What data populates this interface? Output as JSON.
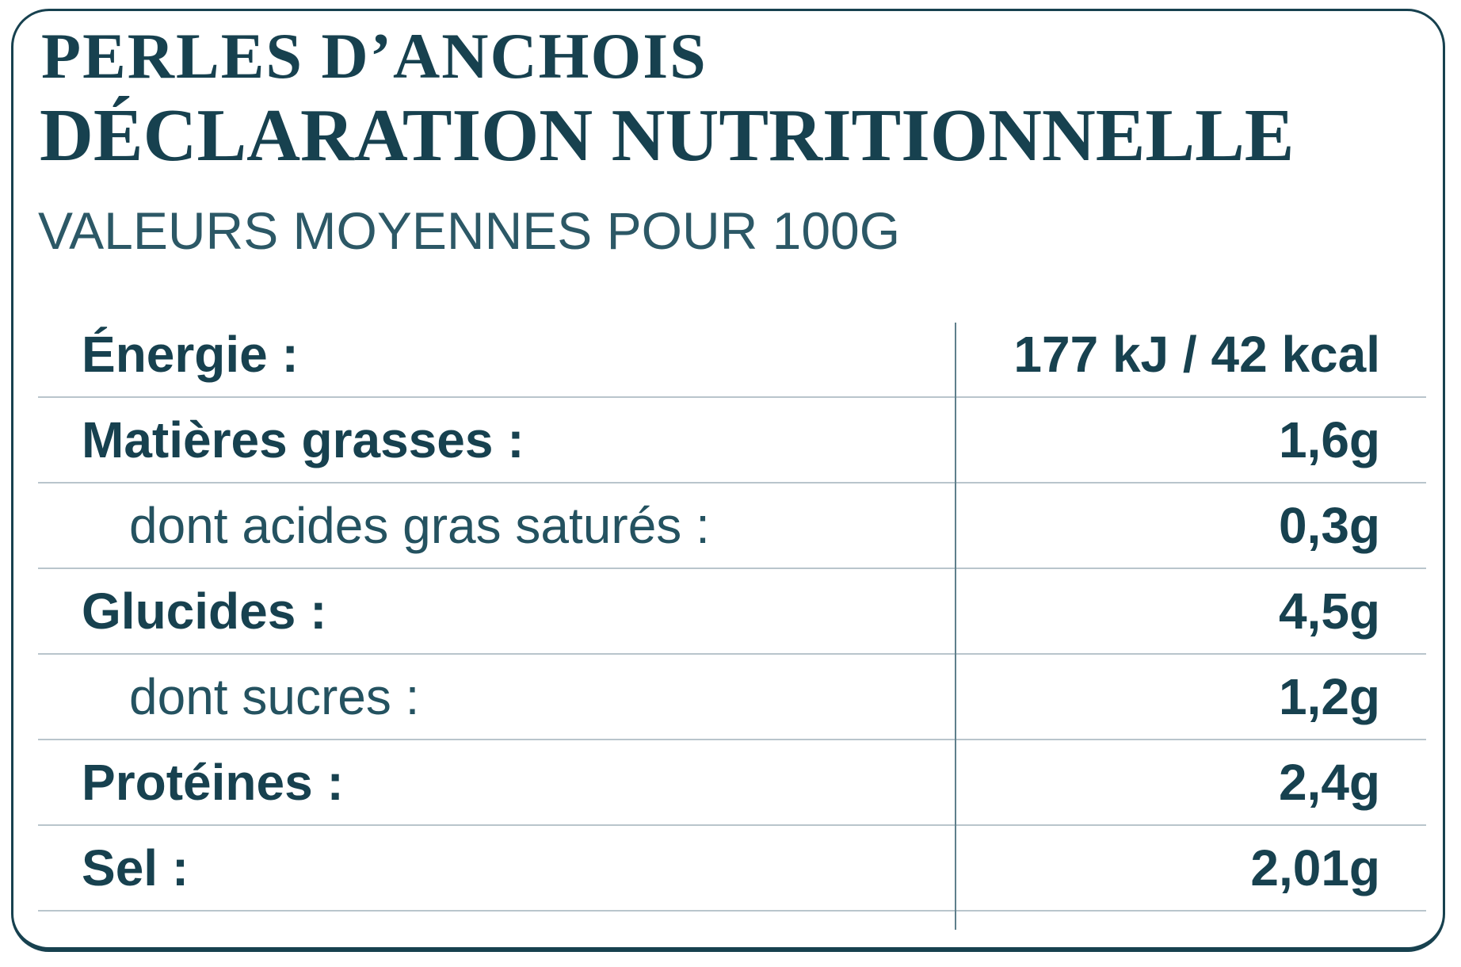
{
  "header": {
    "product": "PERLES D’ANCHOIS",
    "title": "DÉCLARATION NUTRITIONNELLE",
    "subtitle": "VALEURS MOYENNES POUR 100G"
  },
  "table": {
    "rows": [
      {
        "label": "Énergie :",
        "value": "177 kJ / 42 kcal",
        "indent": false
      },
      {
        "label": "Matières grasses :",
        "value": "1,6g",
        "indent": false
      },
      {
        "label": "dont acides gras saturés :",
        "value": "0,3g",
        "indent": true
      },
      {
        "label": "Glucides :",
        "value": "4,5g",
        "indent": false
      },
      {
        "label": "dont sucres :",
        "value": "1,2g",
        "indent": true
      },
      {
        "label": "Protéines :",
        "value": "2,4g",
        "indent": false
      },
      {
        "label": "Sel :",
        "value": "2,01g",
        "indent": false
      }
    ]
  },
  "colors": {
    "text_teal": "#17414f",
    "subtitle_teal": "#2c5866",
    "indent_label_teal": "#245260",
    "horizontal_rule": "#b9c5cc",
    "vertical_divider": "#5f7f8b",
    "card_border": "#17414f",
    "background": "#ffffff"
  }
}
